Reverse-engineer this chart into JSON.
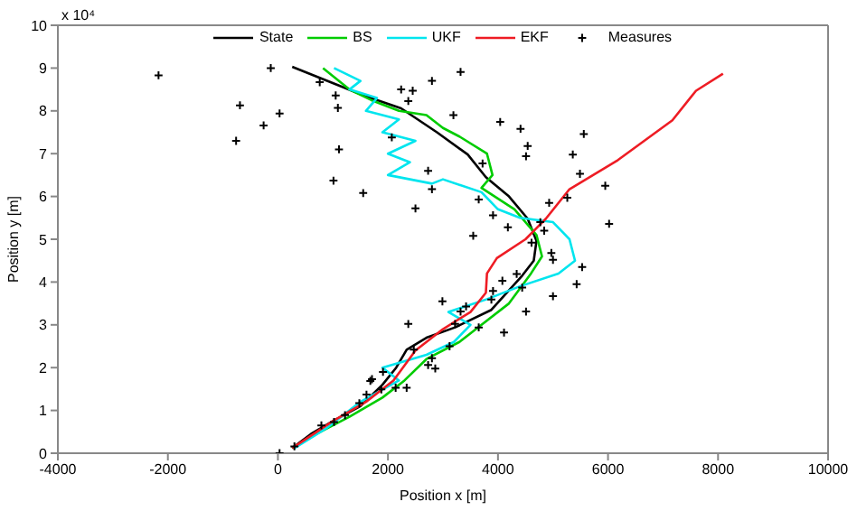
{
  "chart_data": {
    "type": "line",
    "xlabel": "Position  x [m]",
    "ylabel": "Position  y [m]",
    "annotations": [
      "x 10⁴"
    ],
    "xlim": [
      -4000,
      10000
    ],
    "xticks": [
      -4000,
      -2000,
      0,
      2000,
      4000,
      6000,
      8000,
      10000
    ],
    "ylim": [
      0,
      10
    ],
    "yticks": [
      0,
      1,
      2,
      3,
      4,
      5,
      6,
      7,
      8,
      9,
      10
    ],
    "legend": "top",
    "line_style": "solid",
    "marker": "none",
    "series": [
      {
        "name": "State",
        "color": "#000000",
        "x": [
          260,
          600,
          1000,
          1500,
          1900,
          2150,
          2340,
          2700,
          3220,
          3880,
          4440,
          4650,
          4700,
          4540,
          4200,
          3780,
          3450,
          2890,
          2240,
          1580,
          260
        ],
        "values": [
          0.12,
          0.45,
          0.75,
          1.1,
          1.6,
          2.0,
          2.42,
          2.7,
          2.94,
          3.35,
          4.15,
          4.5,
          4.96,
          5.48,
          6.0,
          6.45,
          6.98,
          7.5,
          8.06,
          8.35,
          9.03
        ]
      },
      {
        "name": "BS",
        "color": "#00cc00",
        "x": [
          260,
          700,
          1300,
          1900,
          2300,
          2700,
          3300,
          3600,
          4200,
          4600,
          4800,
          4700,
          4300,
          3700,
          3900,
          3800,
          3300,
          3000,
          2700,
          2200,
          1700,
          1300,
          820
        ],
        "values": [
          0.12,
          0.45,
          0.85,
          1.3,
          1.7,
          2.2,
          2.6,
          2.9,
          3.5,
          4.2,
          4.6,
          5.1,
          5.7,
          6.2,
          6.5,
          7.0,
          7.4,
          7.6,
          7.9,
          8.0,
          8.25,
          8.5,
          9.0
        ]
      },
      {
        "name": "UKF",
        "color": "#00e5ee",
        "x": [
          300,
          900,
          1500,
          2200,
          1900,
          2700,
          3200,
          3500,
          3100,
          3800,
          4400,
          5100,
          5400,
          5300,
          5000,
          4400,
          4000,
          3700,
          3000,
          2800,
          2000,
          2400,
          2000,
          2500,
          1900,
          2200,
          1600,
          1800,
          1300,
          1500,
          1020
        ],
        "values": [
          0.12,
          0.6,
          1.2,
          1.7,
          2.0,
          2.3,
          2.6,
          3.0,
          3.3,
          3.6,
          3.9,
          4.2,
          4.5,
          5.0,
          5.4,
          5.5,
          5.7,
          6.1,
          6.4,
          6.3,
          6.5,
          6.8,
          7.0,
          7.3,
          7.5,
          7.8,
          8.0,
          8.3,
          8.5,
          8.7,
          9.0
        ]
      },
      {
        "name": "EKF",
        "color": "#ee1c24",
        "x": [
          260,
          1000,
          1600,
          2100,
          2500,
          3000,
          3500,
          3780,
          3800,
          3980,
          4500,
          4870,
          5300,
          6180,
          7170,
          7600,
          8090
        ],
        "values": [
          0.12,
          0.75,
          1.2,
          1.7,
          2.4,
          2.9,
          3.3,
          3.75,
          4.2,
          4.56,
          5.0,
          5.48,
          6.17,
          6.85,
          7.78,
          8.47,
          8.87
        ]
      },
      {
        "name": "Measures",
        "type": "scatter",
        "marker": "cross",
        "color": "#000000",
        "x": [
          -2170,
          -130,
          -690,
          30,
          -260,
          -760,
          760,
          1050,
          1090,
          2070,
          1110,
          1010,
          1550,
          2500,
          2240,
          2450,
          2370,
          2800,
          2730,
          2800,
          3320,
          3190,
          4040,
          4410,
          5560,
          4540,
          4510,
          5360,
          3720,
          5490,
          5950,
          5260,
          3650,
          4930,
          3910,
          4180,
          3550,
          6020,
          4770,
          4840,
          4610,
          4970,
          5000,
          5530,
          5430,
          5000,
          4510,
          4080,
          4440,
          4340,
          2990,
          3320,
          3910,
          3880,
          4110,
          3650,
          3420,
          3220,
          3120,
          2370,
          2470,
          2800,
          2730,
          2860,
          2340,
          1910,
          1680,
          1710,
          1610,
          1480,
          1220,
          1020,
          790,
          30,
          300,
          1880,
          2140
        ],
        "values": [
          8.83,
          9.0,
          8.13,
          7.94,
          7.66,
          7.3,
          8.67,
          8.36,
          8.07,
          7.38,
          7.1,
          6.37,
          6.08,
          5.72,
          8.5,
          8.47,
          8.23,
          8.7,
          6.6,
          6.17,
          8.91,
          7.9,
          7.74,
          7.58,
          7.46,
          7.18,
          6.94,
          6.98,
          6.77,
          6.53,
          6.25,
          5.97,
          5.93,
          5.85,
          5.56,
          5.28,
          5.08,
          5.36,
          5.4,
          5.2,
          4.92,
          4.68,
          4.52,
          4.35,
          3.95,
          3.67,
          3.31,
          4.03,
          3.87,
          4.19,
          3.55,
          3.31,
          3.79,
          3.59,
          2.82,
          2.94,
          3.43,
          3.02,
          2.5,
          3.02,
          2.42,
          2.22,
          2.06,
          1.98,
          1.53,
          1.9,
          1.69,
          1.73,
          1.37,
          1.17,
          0.89,
          0.73,
          0.65,
          0.0,
          0.16,
          1.49,
          1.53
        ]
      }
    ]
  }
}
